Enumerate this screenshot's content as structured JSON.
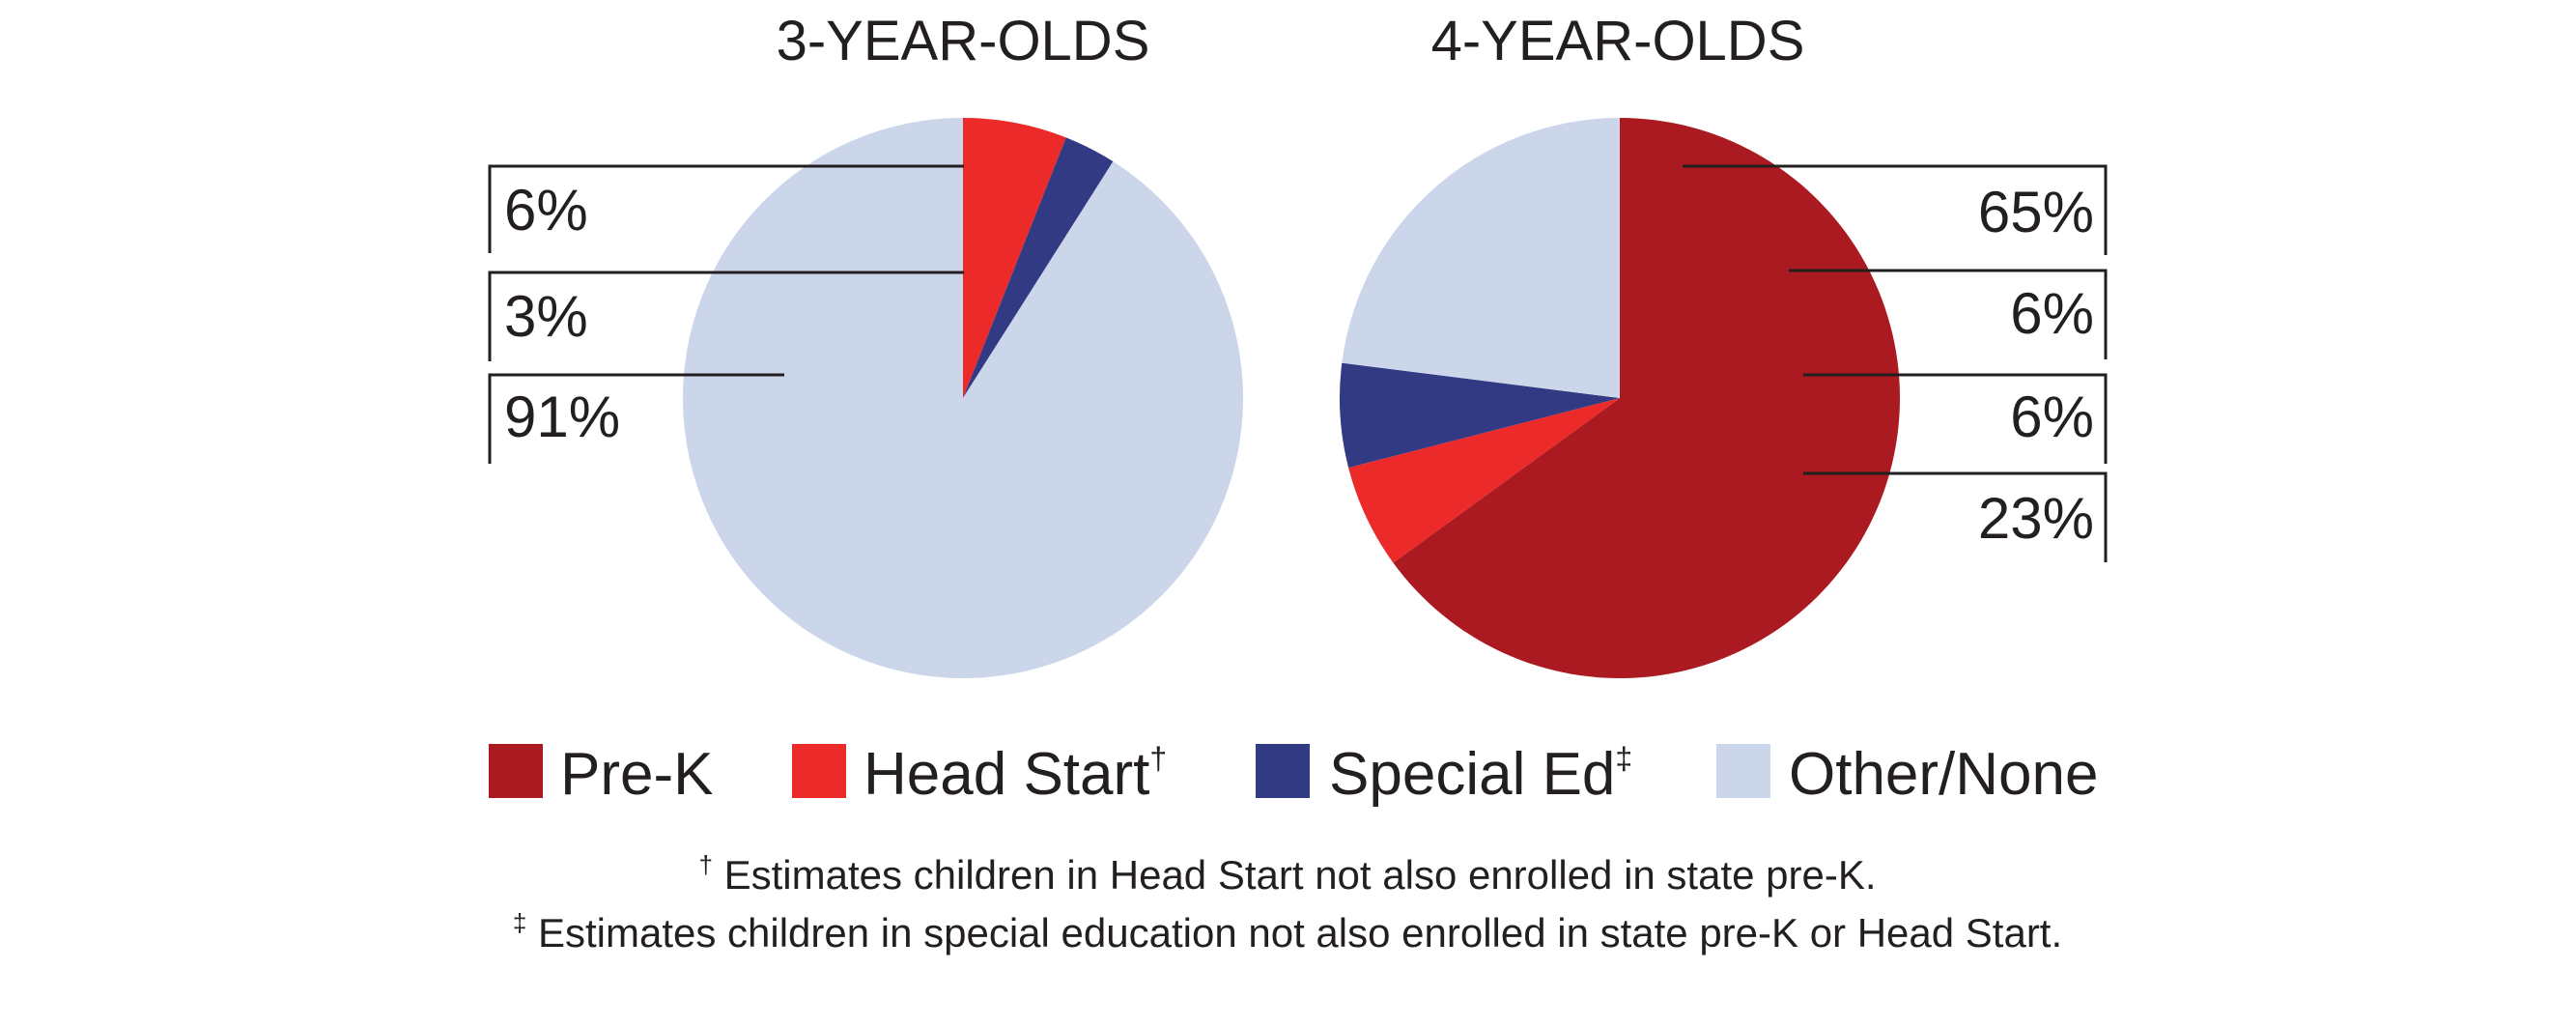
{
  "colors": {
    "pre_k": "#ab1a20",
    "head_start": "#ec2a2a",
    "special_ed": "#323a83",
    "other_none": "#ccd6eb"
  },
  "chart_data": [
    {
      "type": "pie",
      "title": "3-YEAR-OLDS",
      "slices": [
        {
          "category": "Pre-K",
          "value": 0,
          "label": ""
        },
        {
          "category": "Head Start",
          "value": 6,
          "label": "6%"
        },
        {
          "category": "Special Ed",
          "value": 3,
          "label": "3%"
        },
        {
          "category": "Other/None",
          "value": 91,
          "label": "91%"
        }
      ],
      "label_side": "left"
    },
    {
      "type": "pie",
      "title": "4-YEAR-OLDS",
      "slices": [
        {
          "category": "Pre-K",
          "value": 65,
          "label": "65%"
        },
        {
          "category": "Head Start",
          "value": 6,
          "label": "6%"
        },
        {
          "category": "Special Ed",
          "value": 6,
          "label": "6%"
        },
        {
          "category": "Other/None",
          "value": 23,
          "label": "23%"
        }
      ],
      "label_side": "right"
    }
  ],
  "legend": {
    "placement": "bottom",
    "items": [
      {
        "key": "pre_k",
        "label": "Pre-K",
        "mark": ""
      },
      {
        "key": "head_start",
        "label": "Head Start",
        "mark": "†"
      },
      {
        "key": "special_ed",
        "label": "Special Ed",
        "mark": "‡"
      },
      {
        "key": "other_none",
        "label": "Other/None",
        "mark": ""
      }
    ]
  },
  "footnotes": {
    "dagger_mark": "†",
    "dagger": " Estimates children in Head Start not also enrolled in state pre-K.",
    "ddagger_mark": "‡",
    "ddagger": " Estimates children in special education not also enrolled in state pre-K or Head Start."
  }
}
